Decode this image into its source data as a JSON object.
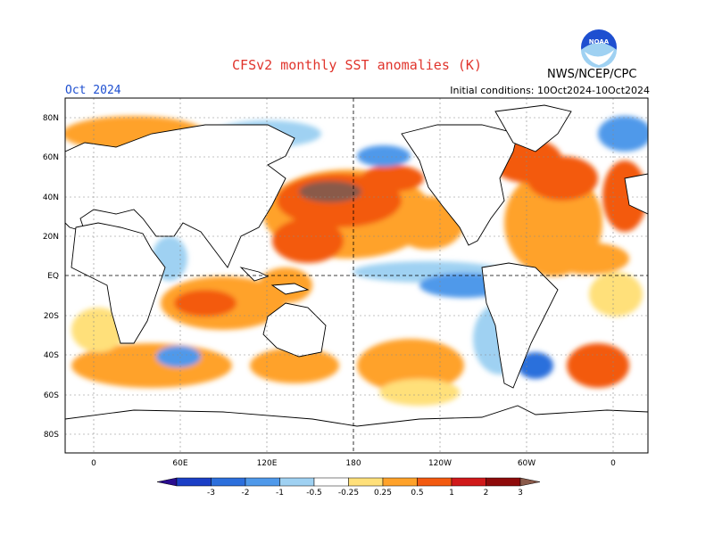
{
  "header": {
    "title": "CFSv2 monthly SST anomalies (K)",
    "month": "Oct 2024",
    "initial_conditions": "Initial conditions: 10Oct2024-10Oct2024",
    "agency": "NWS/NCEP/CPC",
    "logo_text": "NOAA"
  },
  "map": {
    "lat_labels": [
      "80N",
      "60N",
      "40N",
      "20N",
      "EQ",
      "20S",
      "40S",
      "60S",
      "80S"
    ],
    "lon_labels": [
      "0",
      "60E",
      "120E",
      "180",
      "120W",
      "60W",
      "0"
    ],
    "reference_lines": [
      "equator",
      "date-line"
    ]
  },
  "legend": {
    "labels": [
      "-3",
      "-2",
      "-1",
      "-0.5",
      "-0.25",
      "0.25",
      "0.5",
      "1",
      "2",
      "3"
    ],
    "colors": [
      "#2a0d8f",
      "#1b3fc6",
      "#2c6fdc",
      "#4f99ea",
      "#9fd1f2",
      "#ffffff",
      "#ffe07a",
      "#ffa22a",
      "#f35a10",
      "#d0191a",
      "#8e0a0a",
      "#8a5a4a"
    ]
  },
  "colors": {
    "title": "#e0342c",
    "month": "#1e4fd0",
    "land": "#ffffff",
    "coast": "#000000"
  }
}
